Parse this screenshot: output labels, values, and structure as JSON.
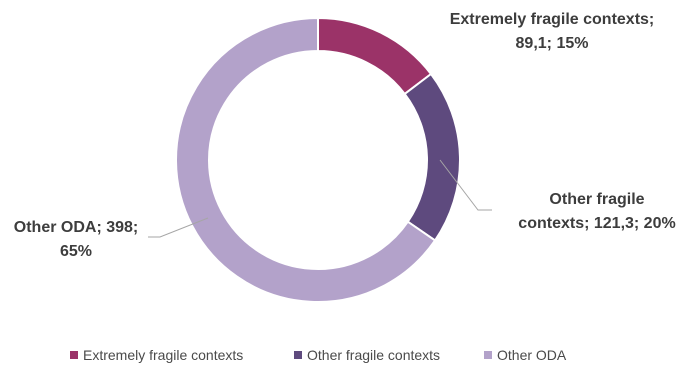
{
  "chart_data": {
    "type": "pie",
    "variant": "donut",
    "title": "",
    "slices": [
      {
        "name": "Extremely fragile contexts",
        "value": 89.1,
        "value_label": "89,1",
        "percent": 15,
        "color": "#9b3368",
        "label_lines": [
          "Extremely fragile contexts;",
          "89,1; 15%"
        ]
      },
      {
        "name": "Other fragile contexts",
        "value": 121.3,
        "value_label": "121,3",
        "percent": 20,
        "color": "#5e4a7e",
        "label_lines": [
          "Other fragile",
          "contexts; 121,3; 20%"
        ]
      },
      {
        "name": "Other ODA",
        "value": 398,
        "value_label": "398",
        "percent": 65,
        "color": "#b3a2ca",
        "label_lines": [
          "Other ODA; 398;",
          "65%"
        ]
      }
    ],
    "legend": {
      "position": "bottom",
      "items": [
        "Extremely fragile contexts",
        "Other fragile contexts",
        "Other ODA"
      ]
    }
  }
}
